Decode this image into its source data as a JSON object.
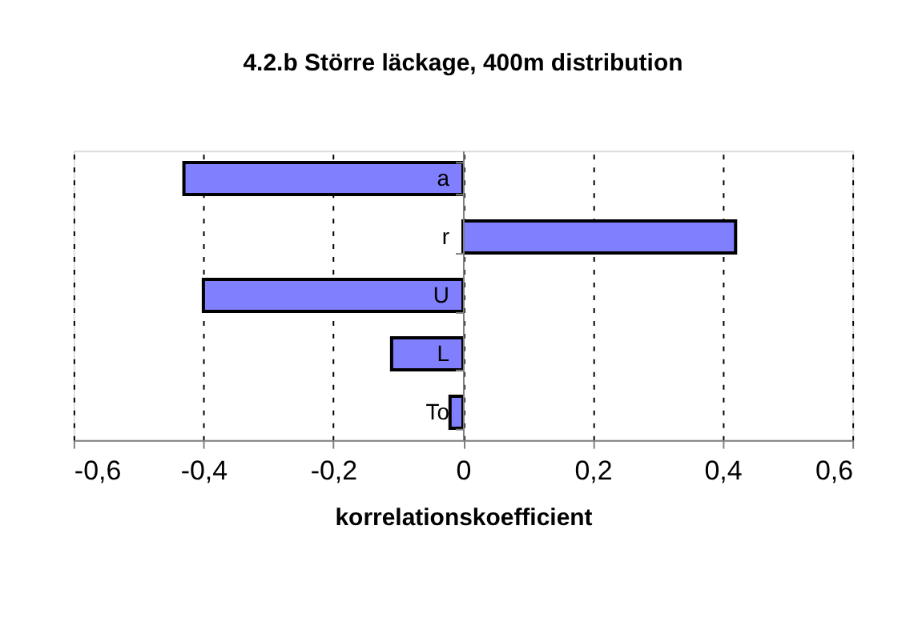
{
  "chart_data": {
    "type": "bar",
    "orientation": "horizontal",
    "title": "4.2.b Större läckage, 400m distribution",
    "xlabel": "korrelationskoefficient",
    "categories": [
      "a",
      "r",
      "U",
      "L",
      "To"
    ],
    "series": [
      {
        "color": "#8080ff",
        "values": [
          -0.43,
          0.42,
          -0.4,
          -0.11,
          -0.02
        ]
      }
    ],
    "xlim": [
      -0.6,
      0.6
    ],
    "xticks": [
      {
        "value": -0.6,
        "label": "-0,6"
      },
      {
        "value": -0.4,
        "label": "-0,4"
      },
      {
        "value": -0.2,
        "label": "-0,2"
      },
      0,
      {
        "value": 0.2,
        "label": "0,2"
      },
      {
        "value": 0.4,
        "label": "0,4"
      },
      {
        "value": 0.6,
        "label": "0,6"
      }
    ],
    "grid": "x"
  }
}
